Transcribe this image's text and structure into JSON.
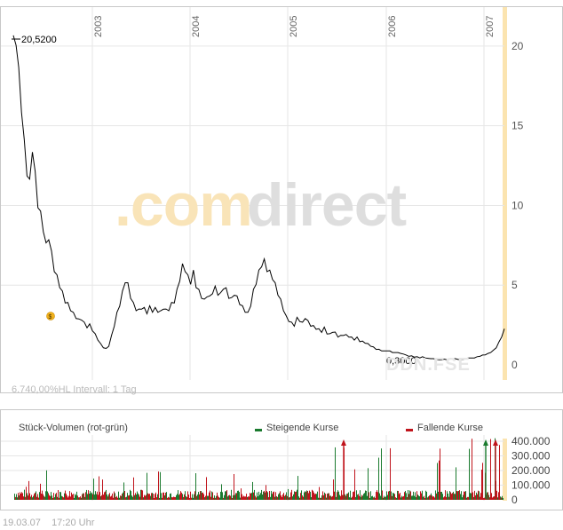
{
  "watermark": {
    "brand_a": ".com",
    "brand_b": "direct",
    "ticker": "DDN.FSE"
  },
  "price_chart": {
    "info_text": "6.740,00%HL Intervall: 1 Tag",
    "max_label": "20,5200",
    "min_label": "0,3000",
    "dividend_marker": "$"
  },
  "volume_chart": {
    "title": "Stück-Volumen (rot-grün)",
    "legend_up": "Steigende Kurse",
    "legend_down": "Fallende Kurse",
    "up_color": "#1a7a2e",
    "down_color": "#c0141c"
  },
  "footer": {
    "date": "19.03.07",
    "time": "17:20 Uhr"
  },
  "colors": {
    "line": "#000000",
    "grid": "#e6e6e6",
    "highlight": "#fbe4b0"
  },
  "chart_data": [
    {
      "type": "line",
      "title": "",
      "xlabel": "",
      "ylabel": "",
      "x_tick_labels": [
        "2003",
        "2004",
        "2005",
        "2006",
        "2007"
      ],
      "y_tick_labels": [
        "0",
        "5",
        "10",
        "15",
        "20"
      ],
      "ylim": [
        0,
        22
      ],
      "grid": true,
      "series": [
        {
          "values": [
            20.52,
            20.2,
            18.5,
            16.0,
            14.0,
            12.0,
            11.5,
            13.5,
            12.0,
            10.0,
            9.5,
            8.5,
            7.5,
            8.0,
            7.0,
            6.0,
            5.5,
            5.0,
            4.5,
            4.0,
            3.8,
            3.5,
            3.2,
            3.0,
            2.8,
            2.9,
            2.6,
            2.4,
            2.5,
            2.2,
            1.9,
            1.6,
            1.3,
            1.1,
            1.0,
            1.2,
            1.8,
            2.5,
            3.2,
            3.8,
            4.5,
            5.3,
            5.0,
            4.3,
            3.8,
            3.5,
            3.4,
            3.6,
            3.5,
            3.3,
            3.6,
            3.4,
            3.5,
            3.4,
            3.3,
            3.6,
            3.4,
            3.5,
            3.8,
            4.0,
            4.6,
            5.4,
            6.2,
            6.0,
            5.5,
            5.2,
            5.8,
            5.0,
            4.6,
            4.3,
            4.0,
            4.4,
            4.2,
            4.6,
            4.8,
            4.5,
            4.4,
            4.9,
            4.7,
            4.3,
            4.1,
            4.5,
            4.2,
            3.9,
            3.6,
            3.4,
            3.2,
            3.8,
            4.6,
            5.2,
            5.8,
            6.3,
            6.5,
            6.0,
            5.8,
            5.5,
            5.0,
            4.5,
            4.0,
            3.5,
            3.0,
            2.8,
            2.6,
            2.5,
            2.9,
            2.8,
            2.6,
            3.0,
            2.7,
            2.5,
            2.4,
            2.3,
            2.2,
            2.1,
            2.3,
            2.0,
            1.9,
            2.1,
            2.0,
            1.8,
            1.8,
            1.9,
            1.85,
            1.8,
            1.7,
            1.6,
            1.7,
            1.5,
            1.45,
            1.4,
            1.3,
            1.2,
            1.1,
            1.0,
            0.95,
            0.9,
            0.85,
            0.9,
            0.85,
            0.8,
            0.75,
            0.8,
            0.7,
            0.7,
            0.6,
            0.55,
            0.55,
            0.5,
            0.5,
            0.45,
            0.5,
            0.45,
            0.4,
            0.4,
            0.38,
            0.35,
            0.3,
            0.32,
            0.35,
            0.33,
            0.35,
            0.4,
            0.38,
            0.35,
            0.32,
            0.35,
            0.4,
            0.45,
            0.42,
            0.45,
            0.5,
            0.55,
            0.6,
            0.65,
            0.7,
            0.8,
            0.9,
            1.1,
            1.4,
            1.8,
            2.2
          ]
        }
      ]
    },
    {
      "type": "bar",
      "title": "Stück-Volumen (rot-grün)",
      "y_tick_labels": [
        "0",
        "100.000",
        "200.000",
        "300.000",
        "400.000"
      ],
      "ylim": [
        0,
        400000
      ],
      "legend": [
        "Steigende Kurse",
        "Fallende Kurse"
      ]
    }
  ]
}
